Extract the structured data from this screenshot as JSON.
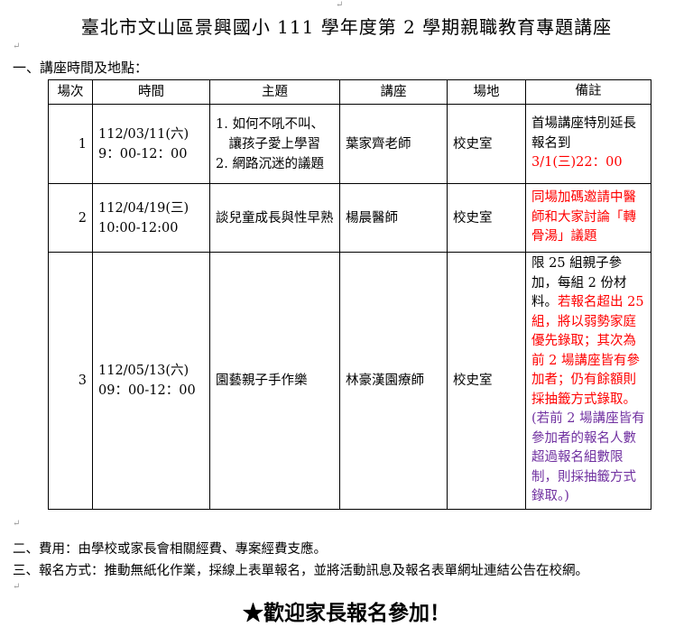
{
  "title": "臺北市文山區景興國小 111 學年度第 2 學期親職教育專題講座",
  "section1": "一、講座時間及地點：",
  "table": {
    "headers": [
      "場次",
      "時間",
      "主題",
      "講座",
      "場地",
      "備註"
    ],
    "rows": [
      {
        "no": "1",
        "date": "112/03/11(六)",
        "time": "9：00-12：00",
        "topic": [
          "1. 如何不吼不叫、",
          "　讓孩子愛上學習",
          "2. 網路沉迷的議題"
        ],
        "speaker": "葉家齊老師",
        "venue": "校史室",
        "remark": [
          {
            "text": "首場講座特別延長報名到",
            "color": "#000000"
          },
          {
            "text": "3/1(三)22：00",
            "color": "#ff0000",
            "block": true
          }
        ]
      },
      {
        "no": "2",
        "date": "112/04/19(三)",
        "time": "10:00-12:00",
        "topic": [
          "談兒童成長與性早熟"
        ],
        "speaker": "楊晨醫師",
        "venue": "校史室",
        "remark": [
          {
            "text": "同場加碼邀請中醫師和大家討論「轉骨湯」議題",
            "color": "#ff0000"
          }
        ]
      },
      {
        "no": "3",
        "date": "112/05/13(六)",
        "time": "09：00-12：00",
        "topic": [
          "園藝親子手作樂"
        ],
        "speaker": "林豪漢園療師",
        "venue": "校史室",
        "remark": [
          {
            "text": "限 25 組親子參加，每組 2 份材料。",
            "color": "#000000"
          },
          {
            "text": "若報名超出 25 組，將以弱勢家庭優先錄取；其次為前 2 場講座皆有參加者；仍有餘額則採抽籤方式錄取。",
            "color": "#ff0000"
          },
          {
            "text": "(若前 2 場講座皆有參加者的報名人數超過報名組數限制，則採抽籤方式錄取。)",
            "color": "#7030a0",
            "block": true
          }
        ]
      }
    ]
  },
  "section2": "二、費用：由學校或家長會相關經費、專案經費支應。",
  "section3": "三、報名方式：推動無紙化作業，採線上表單報名，並將活動訊息及報名表單網址連結公告在校網。",
  "welcome": "★歡迎家長報名參加！"
}
